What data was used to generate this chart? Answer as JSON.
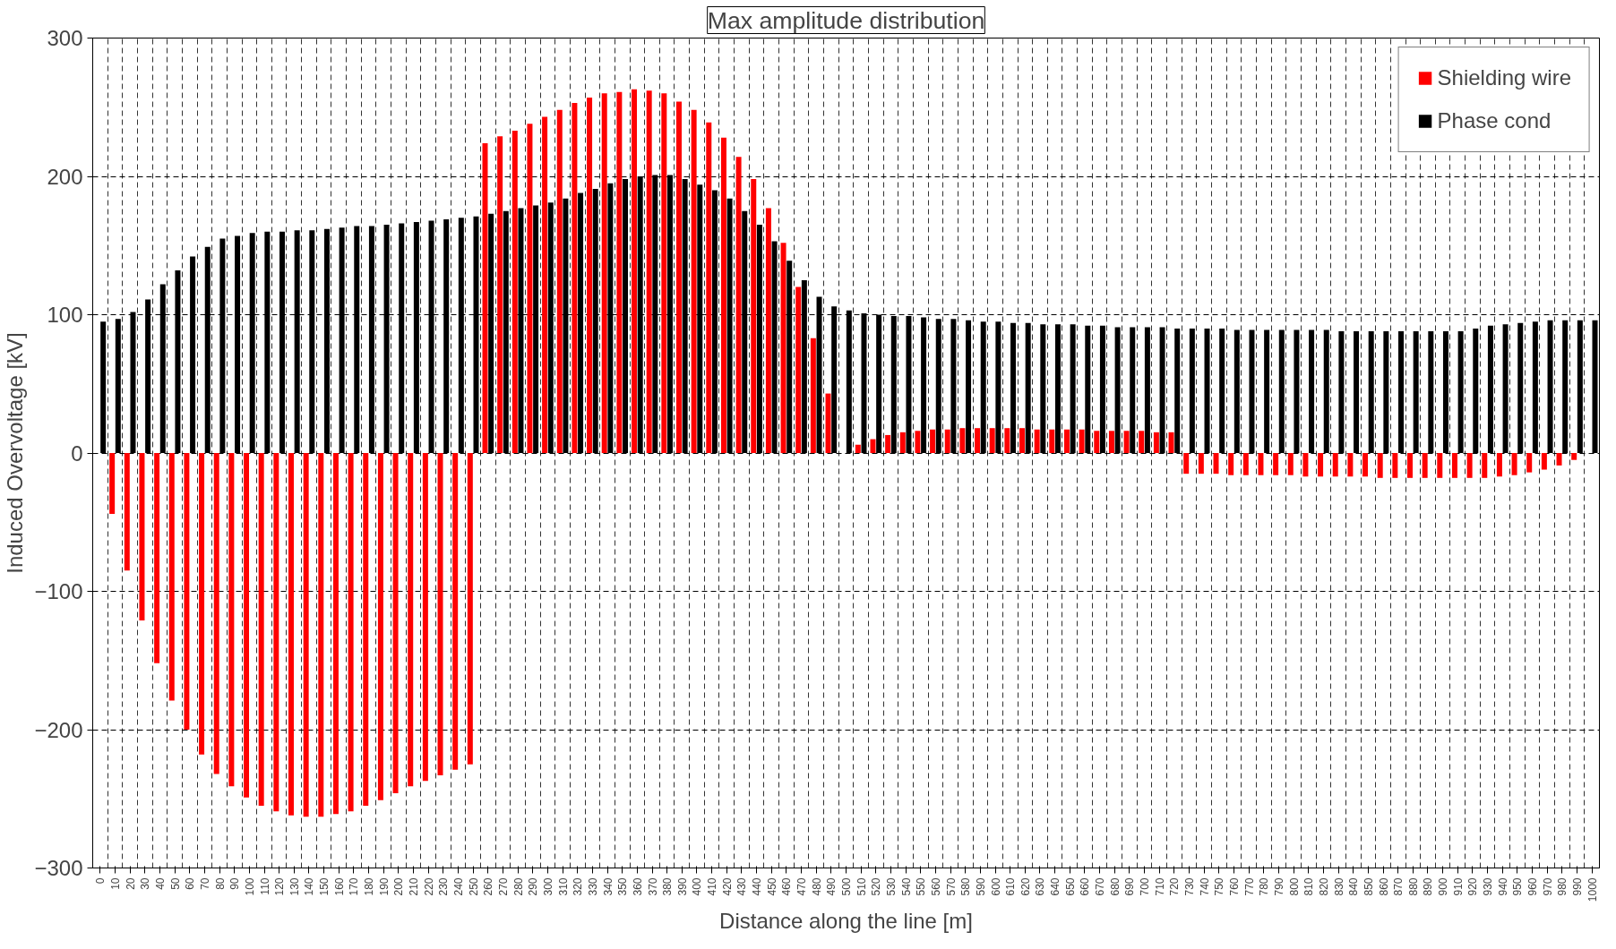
{
  "chart_data": {
    "type": "bar",
    "title": "Max amplitude distribution",
    "xlabel": "Distance along the line [m]",
    "ylabel": "Induced Overvoltage [kV]",
    "categories": [
      "0",
      "10",
      "20",
      "30",
      "40",
      "50",
      "60",
      "70",
      "80",
      "90",
      "100",
      "110",
      "120",
      "130",
      "140",
      "150",
      "160",
      "170",
      "180",
      "190",
      "200",
      "210",
      "220",
      "230",
      "240",
      "250",
      "260",
      "270",
      "280",
      "290",
      "300",
      "310",
      "320",
      "330",
      "340",
      "350",
      "360",
      "370",
      "380",
      "390",
      "400",
      "410",
      "420",
      "430",
      "440",
      "450",
      "460",
      "470",
      "480",
      "490",
      "500",
      "510",
      "520",
      "530",
      "540",
      "550",
      "560",
      "570",
      "580",
      "590",
      "600",
      "610",
      "620",
      "630",
      "640",
      "650",
      "660",
      "670",
      "680",
      "690",
      "700",
      "710",
      "720",
      "730",
      "740",
      "750",
      "760",
      "770",
      "780",
      "790",
      "800",
      "810",
      "820",
      "830",
      "840",
      "850",
      "860",
      "870",
      "880",
      "890",
      "900",
      "910",
      "920",
      "930",
      "940",
      "950",
      "960",
      "970",
      "980",
      "990",
      "1000"
    ],
    "series": [
      {
        "name": "Shielding wire",
        "color": "#ff0000",
        "values": [
          0,
          -44,
          -85,
          -121,
          -152,
          -179,
          -200,
          -218,
          -232,
          -241,
          -249,
          -255,
          -259,
          -262,
          -263,
          -263,
          -261,
          -259,
          -255,
          -251,
          -246,
          -241,
          -237,
          -233,
          -229,
          -225,
          224,
          229,
          233,
          238,
          243,
          248,
          253,
          257,
          260,
          261,
          263,
          262,
          260,
          254,
          248,
          239,
          228,
          214,
          198,
          177,
          152,
          120,
          83,
          43,
          0,
          6,
          10,
          13,
          15,
          16,
          17,
          17,
          18,
          18,
          18,
          18,
          18,
          17,
          17,
          17,
          17,
          16,
          16,
          16,
          16,
          15,
          15,
          -15,
          -15,
          -15,
          -16,
          -16,
          -16,
          -16,
          -16,
          -17,
          -17,
          -17,
          -17,
          -17,
          -18,
          -18,
          -18,
          -18,
          -18,
          -18,
          -18,
          -18,
          -17,
          -16,
          -14,
          -12,
          -9,
          -5,
          0
        ]
      },
      {
        "name": "Phase cond",
        "color": "#000000",
        "values": [
          95,
          97,
          102,
          111,
          122,
          132,
          142,
          149,
          155,
          157,
          159,
          160,
          160,
          161,
          161,
          162,
          163,
          164,
          164,
          165,
          166,
          167,
          168,
          169,
          170,
          171,
          173,
          175,
          177,
          179,
          181,
          184,
          188,
          191,
          195,
          198,
          200,
          201,
          201,
          198,
          194,
          190,
          184,
          175,
          165,
          153,
          139,
          125,
          113,
          106,
          103,
          101,
          100,
          99,
          99,
          98,
          97,
          97,
          96,
          95,
          95,
          94,
          94,
          93,
          93,
          93,
          92,
          92,
          91,
          91,
          91,
          91,
          90,
          90,
          90,
          90,
          89,
          89,
          89,
          89,
          89,
          89,
          89,
          88,
          88,
          88,
          88,
          88,
          88,
          88,
          88,
          88,
          90,
          92,
          93,
          94,
          95,
          96,
          96,
          96,
          96
        ]
      }
    ],
    "ylim": [
      -300,
      300
    ],
    "yticks": [
      -300,
      -200,
      -100,
      0,
      100,
      200,
      300
    ],
    "grid": true,
    "legend": "top right"
  }
}
